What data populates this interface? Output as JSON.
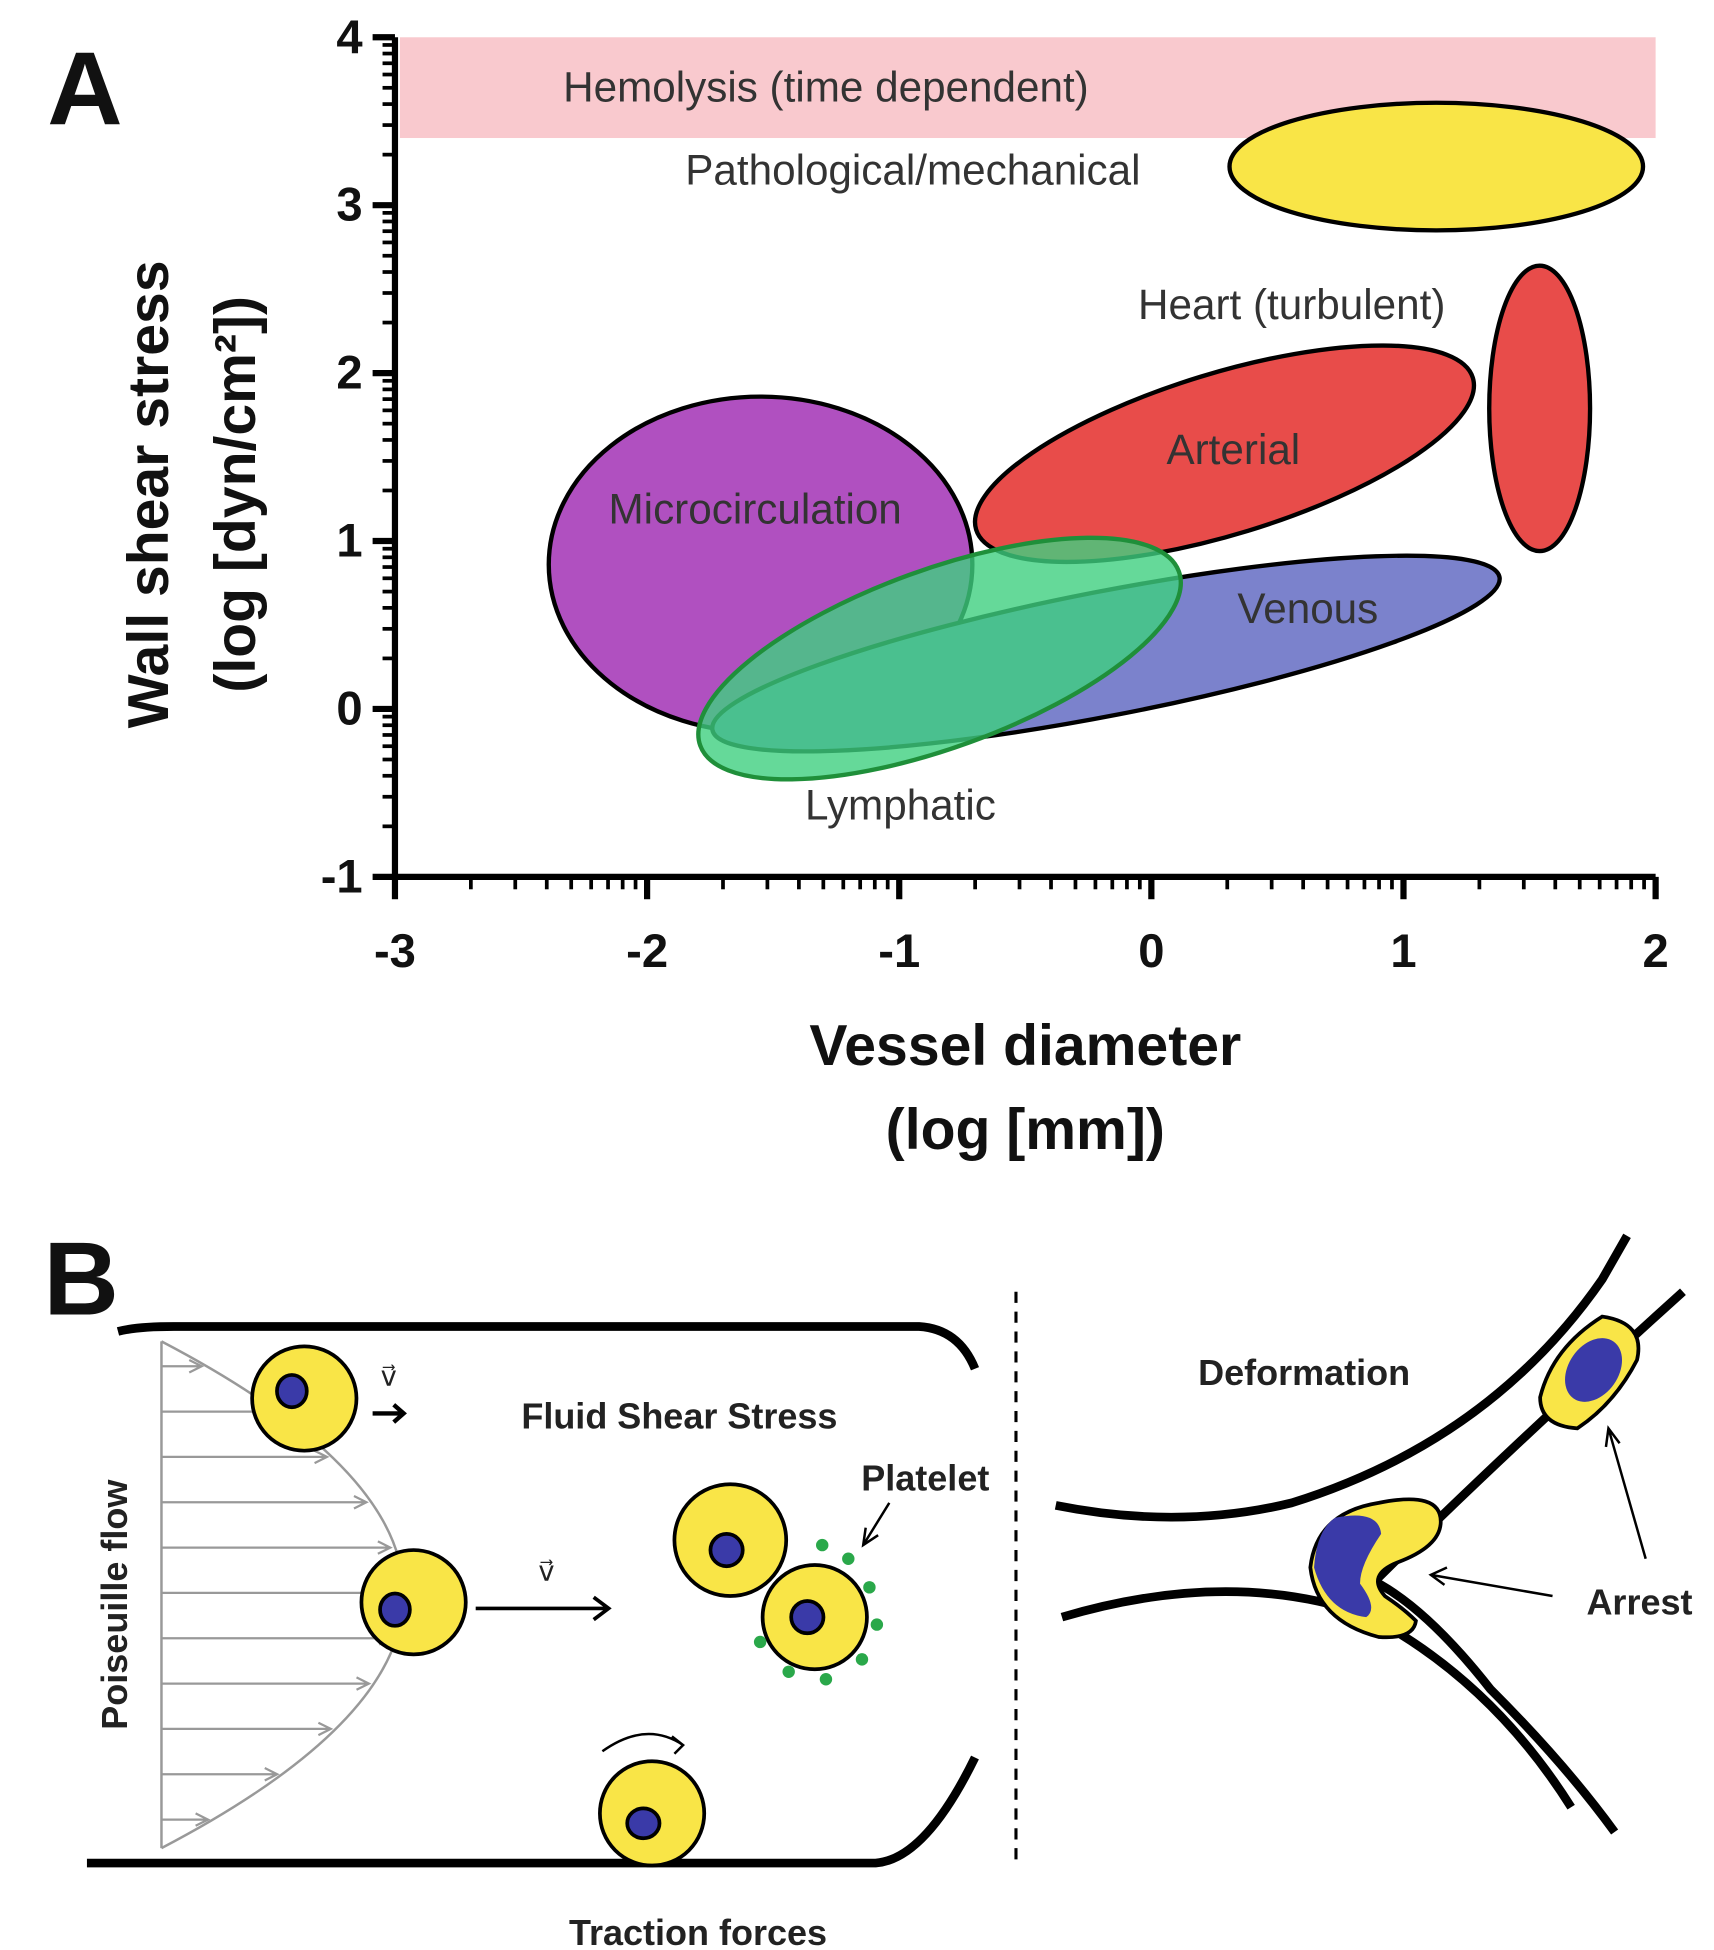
{
  "chart_data": {
    "type": "ellipse-regions",
    "panel_label": "A",
    "xlabel": [
      "Vessel diameter",
      "(log [mm])"
    ],
    "ylabel": [
      "Wall shear stress",
      "(log [dyn/cm²])"
    ],
    "xlim": [
      -3,
      2
    ],
    "xticks": [
      -3,
      -2,
      -1,
      0,
      1,
      2
    ],
    "ylim": [
      -1,
      4
    ],
    "yticks": [
      -1,
      0,
      1,
      2,
      3,
      4
    ],
    "log_minor_ticks": true,
    "band": {
      "name": "Hemolysis (time dependent)",
      "ylim": [
        3.4,
        4
      ],
      "color": "#f9c9ce",
      "text_color": "#e8413c"
    },
    "series": [
      {
        "name": "Pathological/mechanical",
        "color": "#f9e547",
        "x": 1.13,
        "y": 3.23,
        "rx": 0.82,
        "ry": 0.38,
        "angle": 0
      },
      {
        "name": "Heart (turbulent)",
        "color": "#e84c4a",
        "x": 1.54,
        "y": 1.79,
        "rx": 0.2,
        "ry": 0.85,
        "angle": 0
      },
      {
        "name": "Microcirculation",
        "color": "#b050c0",
        "x": -1.55,
        "y": 0.86,
        "rx": 0.84,
        "ry": 1.0,
        "angle": 0
      },
      {
        "name": "Arterial",
        "color": "#e84c4a",
        "x": 0.29,
        "y": 1.52,
        "rx": 1.03,
        "ry": 0.48,
        "angle": -17
      },
      {
        "name": "Venous",
        "color": "#7b82cc",
        "x": -0.18,
        "y": 0.33,
        "rx": 1.59,
        "ry": 0.37,
        "angle": -11
      },
      {
        "name": "Lymphatic",
        "color": "#3fcf7f",
        "opacity": 0.8,
        "x": -0.84,
        "y": 0.3,
        "rx": 1.01,
        "ry": 0.53,
        "angle": -20
      }
    ]
  },
  "diagram": {
    "panel_label": "B",
    "flow_label": "Poiseuille flow",
    "velocity_1": "v⃗",
    "velocity_2": "v⃗",
    "fluid": "Fluid Shear Stress",
    "platelet": "Platelet",
    "traction": "Traction forces",
    "deformation": "Deformation",
    "arrest": "Arrest"
  }
}
